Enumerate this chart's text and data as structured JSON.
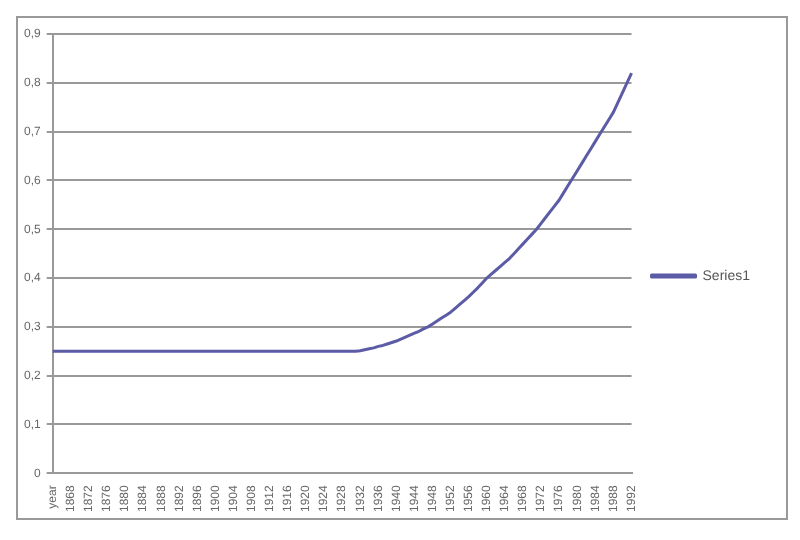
{
  "chart_data": {
    "type": "line",
    "categories": [
      "year",
      null,
      null,
      null,
      "1868",
      null,
      null,
      null,
      "1872",
      null,
      null,
      null,
      "1876",
      null,
      null,
      null,
      "1880",
      null,
      null,
      null,
      "1884",
      null,
      null,
      null,
      "1888",
      null,
      null,
      null,
      "1892",
      null,
      null,
      null,
      "1896",
      null,
      null,
      null,
      "1900",
      null,
      null,
      null,
      "1904",
      null,
      null,
      null,
      "1908",
      null,
      null,
      null,
      "1912",
      null,
      null,
      null,
      "1916",
      null,
      null,
      null,
      "1920",
      null,
      null,
      null,
      "1924",
      null,
      null,
      null,
      "1928",
      null,
      null,
      null,
      "1932",
      null,
      null,
      null,
      "1936",
      null,
      null,
      null,
      "1940",
      null,
      null,
      null,
      "1944",
      null,
      null,
      null,
      "1948",
      null,
      null,
      null,
      "1952",
      null,
      null,
      null,
      "1956",
      null,
      null,
      null,
      "1960",
      null,
      null,
      null,
      "1964",
      null,
      null,
      null,
      "1968",
      null,
      null,
      null,
      "1972",
      null,
      null,
      null,
      "1976",
      null,
      null,
      null,
      "1980",
      null,
      null,
      null,
      "1984",
      null,
      null,
      null,
      "1988",
      null,
      null,
      null,
      "1992"
    ],
    "series": [
      {
        "name": "Series1",
        "color": "#5b5ba6",
        "values": [
          0.25,
          0.25,
          0.25,
          0.25,
          0.25,
          0.25,
          0.25,
          0.25,
          0.25,
          0.25,
          0.25,
          0.25,
          0.25,
          0.25,
          0.25,
          0.25,
          0.25,
          0.25,
          0.25,
          0.25,
          0.25,
          0.25,
          0.25,
          0.25,
          0.25,
          0.25,
          0.25,
          0.25,
          0.25,
          0.25,
          0.25,
          0.25,
          0.25,
          0.25,
          0.25,
          0.25,
          0.25,
          0.25,
          0.25,
          0.25,
          0.25,
          0.25,
          0.25,
          0.25,
          0.25,
          0.25,
          0.25,
          0.25,
          0.25,
          0.25,
          0.25,
          0.25,
          0.25,
          0.25,
          0.25,
          0.25,
          0.25,
          0.25,
          0.25,
          0.25,
          0.25,
          0.25,
          0.25,
          0.25,
          0.25,
          0.25,
          0.25,
          0.25,
          0.251,
          0.253,
          0.255,
          0.257,
          0.26,
          0.262,
          0.265,
          0.268,
          0.271,
          0.275,
          0.279,
          0.283,
          0.287,
          0.291,
          0.296,
          0.3,
          0.306,
          0.312,
          0.318,
          0.324,
          0.33,
          0.338,
          0.346,
          0.354,
          0.362,
          0.371,
          0.38,
          0.39,
          0.4,
          0.408,
          0.416,
          0.424,
          0.432,
          0.44,
          0.45,
          0.46,
          0.47,
          0.48,
          0.49,
          0.5,
          0.512,
          0.524,
          0.536,
          0.548,
          0.56,
          0.575,
          0.59,
          0.605,
          0.62,
          0.635,
          0.65,
          0.665,
          0.68,
          0.695,
          0.71,
          0.725,
          0.74,
          0.76,
          0.78,
          0.8,
          0.82
        ]
      }
    ],
    "ylim": [
      0,
      0.9
    ],
    "yticks": [
      0,
      {
        "value": 0.1,
        "label": "0,1"
      },
      {
        "value": 0.2,
        "label": "0,2"
      },
      {
        "value": 0.3,
        "label": "0,3"
      },
      {
        "value": 0.4,
        "label": "0,4"
      },
      {
        "value": 0.5,
        "label": "0,5"
      },
      {
        "value": 0.6,
        "label": "0,6"
      },
      {
        "value": 0.7,
        "label": "0,7"
      },
      {
        "value": 0.8,
        "label": "0,8"
      },
      {
        "value": 0.9,
        "label": "0,9"
      }
    ],
    "grid": "y",
    "legend": "right",
    "marker": "none",
    "line_style": "solid"
  }
}
